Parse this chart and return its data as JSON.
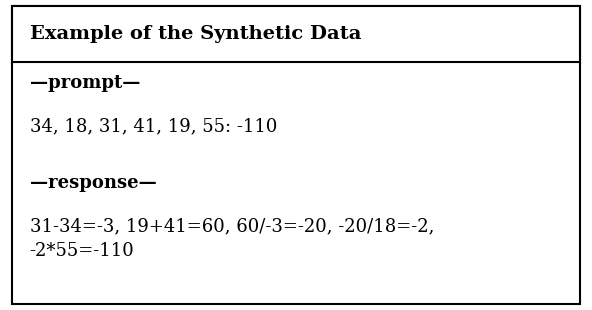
{
  "title": "Example of the Synthetic Data",
  "prompt_label": "—prompt—",
  "prompt_text": "34, 18, 31, 41, 19, 55: -110",
  "response_label": "—response—",
  "response_text": "31-34=-3, 19+41=60, 60/-3=-20, -20/18=-2,\n-2*55=-110",
  "title_fontsize": 14,
  "body_fontsize": 13,
  "bg_color": "#ffffff",
  "border_color": "#000000",
  "fig_width": 5.92,
  "fig_height": 3.1,
  "dpi": 100
}
